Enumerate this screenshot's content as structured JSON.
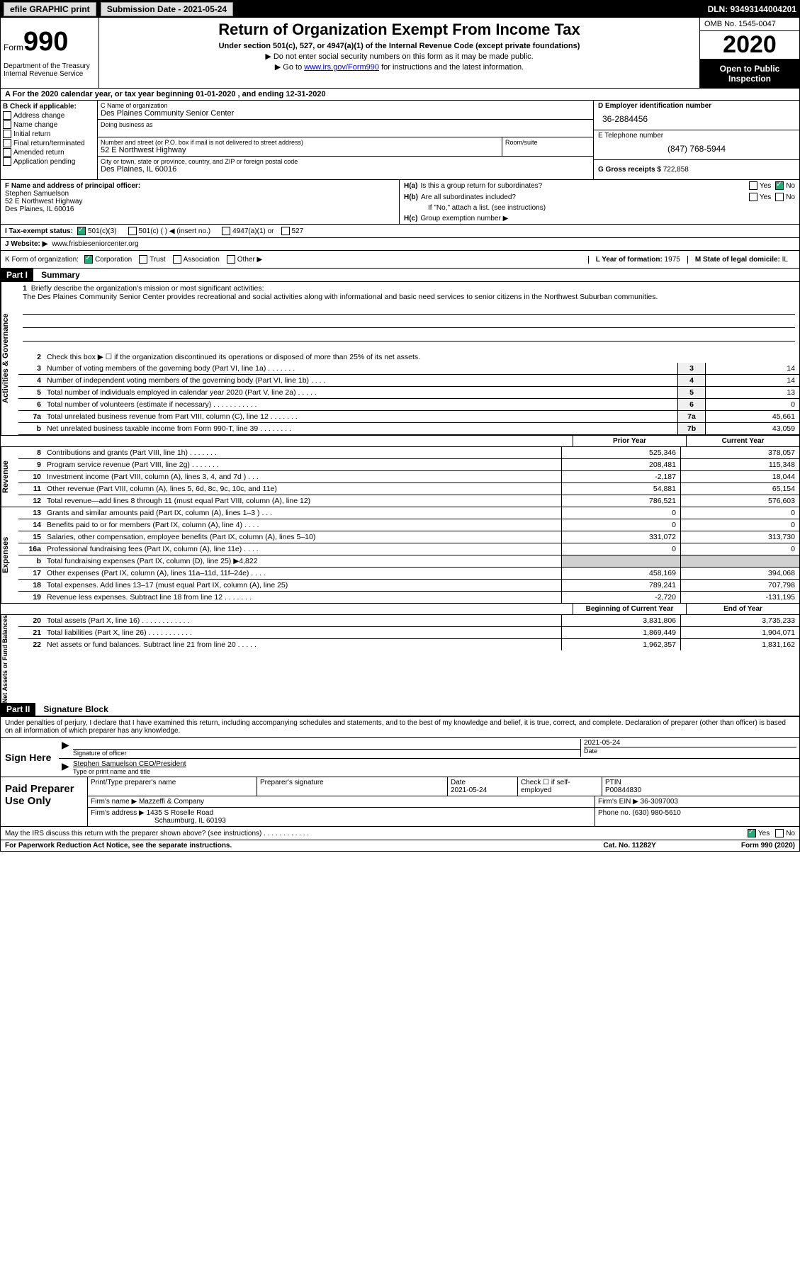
{
  "topbar": {
    "efile": "efile GRAPHIC print",
    "submission": "Submission Date - 2021-05-24",
    "dln": "DLN: 93493144004201"
  },
  "header": {
    "form_prefix": "Form",
    "form_no": "990",
    "dept": "Department of the Treasury\nInternal Revenue Service",
    "title": "Return of Organization Exempt From Income Tax",
    "sub": "Under section 501(c), 527, or 4947(a)(1) of the Internal Revenue Code (except private foundations)",
    "note1": "▶ Do not enter social security numbers on this form as it may be made public.",
    "note2_pre": "▶ Go to ",
    "note2_link": "www.irs.gov/Form990",
    "note2_post": " for instructions and the latest information.",
    "omb": "OMB No. 1545-0047",
    "year": "2020",
    "inspect": "Open to Public Inspection"
  },
  "line_a": "A For the 2020 calendar year, or tax year beginning 01-01-2020   , and ending 12-31-2020",
  "col_b": {
    "hdr": "B Check if applicable:",
    "items": [
      "Address change",
      "Name change",
      "Initial return",
      "Final return/terminated",
      "Amended return",
      "Application pending"
    ]
  },
  "col_c": {
    "name_lbl": "C Name of organization",
    "name": "Des Plaines Community Senior Center",
    "dba_lbl": "Doing business as",
    "dba": "",
    "addr_lbl": "Number and street (or P.O. box if mail is not delivered to street address)",
    "addr": "52 E Northwest Highway",
    "suite_lbl": "Room/suite",
    "city_lbl": "City or town, state or province, country, and ZIP or foreign postal code",
    "city": "Des Plaines, IL  60016"
  },
  "col_d": {
    "ein_lbl": "D Employer identification number",
    "ein": "36-2884456",
    "tel_lbl": "E Telephone number",
    "tel": "(847) 768-5944",
    "gross_lbl": "G Gross receipts $",
    "gross": "722,858"
  },
  "col_f": {
    "lbl": "F  Name and address of principal officer:",
    "name": "Stephen Samuelson",
    "addr1": "52 E Northwest Highway",
    "addr2": "Des Plaines, IL  60016"
  },
  "col_h": {
    "a_lbl": "H(a)",
    "a_txt": "Is this a group return for subordinates?",
    "b_lbl": "H(b)",
    "b_txt": "Are all subordinates included?",
    "b_note": "If \"No,\" attach a list. (see instructions)",
    "c_lbl": "H(c)",
    "c_txt": "Group exemption number ▶",
    "yes": "Yes",
    "no": "No"
  },
  "row_i": {
    "lbl": "I   Tax-exempt status:",
    "opts": [
      "501(c)(3)",
      "501(c) (   ) ◀ (insert no.)",
      "4947(a)(1) or",
      "527"
    ]
  },
  "row_j": {
    "lbl": "J   Website: ▶",
    "val": "www.frisbieseniorcenter.org"
  },
  "row_k": {
    "lbl": "K Form of organization:",
    "opts": [
      "Corporation",
      "Trust",
      "Association",
      "Other ▶"
    ],
    "l_lbl": "L Year of formation:",
    "l_val": "1975",
    "m_lbl": "M State of legal domicile:",
    "m_val": "IL"
  },
  "part1": {
    "hdr": "Part I",
    "title": "Summary",
    "line1_lbl": "1",
    "line1_txt": "Briefly describe the organization's mission or most significant activities:",
    "mission": "The Des Plaines Community Senior Center provides recreational and social activities along with informational and basic need services to senior citizens in the Northwest Suburban communities.",
    "line2_lbl": "2",
    "line2_txt": "Check this box ▶ ☐  if the organization discontinued its operations or disposed of more than 25% of its net assets.",
    "gov_label": "Activities & Governance",
    "rev_label": "Revenue",
    "exp_label": "Expenses",
    "net_label": "Net Assets or Fund Balances",
    "rows_gov": [
      {
        "n": "3",
        "t": "Number of voting members of the governing body (Part VI, line 1a)  .    .    .    .    .    .    .",
        "b": "3",
        "v": "14"
      },
      {
        "n": "4",
        "t": "Number of independent voting members of the governing body (Part VI, line 1b)  .    .    .    .",
        "b": "4",
        "v": "14"
      },
      {
        "n": "5",
        "t": "Total number of individuals employed in calendar year 2020 (Part V, line 2a)  .    .    .    .    .",
        "b": "5",
        "v": "13"
      },
      {
        "n": "6",
        "t": "Total number of volunteers (estimate if necessary)    .    .    .    .    .    .    .    .    .    .    .",
        "b": "6",
        "v": "0"
      },
      {
        "n": "7a",
        "t": "Total unrelated business revenue from Part VIII, column (C), line 12   .    .    .    .    .    .    .",
        "b": "7a",
        "v": "45,661"
      },
      {
        "n": " b",
        "t": "Net unrelated business taxable income from Form 990-T, line 39  .    .    .    .    .    .    .    .",
        "b": "7b",
        "v": "43,059"
      }
    ],
    "prior_hdr": "Prior Year",
    "curr_hdr": "Current Year",
    "rows_rev": [
      {
        "n": "8",
        "t": "Contributions and grants (Part VIII, line 1h)  .    .    .    .    .    .    .",
        "p": "525,346",
        "c": "378,057"
      },
      {
        "n": "9",
        "t": "Program service revenue (Part VIII, line 2g)   .    .    .    .    .    .    .",
        "p": "208,481",
        "c": "115,348"
      },
      {
        "n": "10",
        "t": "Investment income (Part VIII, column (A), lines 3, 4, and 7d )  .    .    .",
        "p": "-2,187",
        "c": "18,044"
      },
      {
        "n": "11",
        "t": "Other revenue (Part VIII, column (A), lines 5, 6d, 8c, 9c, 10c, and 11e)",
        "p": "54,881",
        "c": "65,154"
      },
      {
        "n": "12",
        "t": "Total revenue—add lines 8 through 11 (must equal Part VIII, column (A), line 12)",
        "p": "786,521",
        "c": "576,603"
      }
    ],
    "rows_exp": [
      {
        "n": "13",
        "t": "Grants and similar amounts paid (Part IX, column (A), lines 1–3 )  .    .    .",
        "p": "0",
        "c": "0"
      },
      {
        "n": "14",
        "t": "Benefits paid to or for members (Part IX, column (A), line 4)  .    .    .    .",
        "p": "0",
        "c": "0"
      },
      {
        "n": "15",
        "t": "Salaries, other compensation, employee benefits (Part IX, column (A), lines 5–10)",
        "p": "331,072",
        "c": "313,730"
      },
      {
        "n": "16a",
        "t": "Professional fundraising fees (Part IX, column (A), line 11e)  .    .    .    .",
        "p": "0",
        "c": "0"
      },
      {
        "n": "b",
        "t": "Total fundraising expenses (Part IX, column (D), line 25) ▶4,822",
        "p": "",
        "c": "",
        "shade": true
      },
      {
        "n": "17",
        "t": "Other expenses (Part IX, column (A), lines 11a–11d, 11f–24e)  .    .    .    .",
        "p": "458,169",
        "c": "394,068"
      },
      {
        "n": "18",
        "t": "Total expenses. Add lines 13–17 (must equal Part IX, column (A), line 25)",
        "p": "789,241",
        "c": "707,798"
      },
      {
        "n": "19",
        "t": "Revenue less expenses. Subtract line 18 from line 12 .    .    .    .    .    .    .",
        "p": "-2,720",
        "c": "-131,195"
      }
    ],
    "begin_hdr": "Beginning of Current Year",
    "end_hdr": "End of Year",
    "rows_net": [
      {
        "n": "20",
        "t": "Total assets (Part X, line 16)  .    .    .    .    .    .    .    .    .    .    .    .",
        "p": "3,831,806",
        "c": "3,735,233"
      },
      {
        "n": "21",
        "t": "Total liabilities (Part X, line 26)  .    .    .    .    .    .    .    .    .    .    .",
        "p": "1,869,449",
        "c": "1,904,071"
      },
      {
        "n": "22",
        "t": "Net assets or fund balances. Subtract line 21 from line 20  .    .    .    .    .",
        "p": "1,962,357",
        "c": "1,831,162"
      }
    ]
  },
  "part2": {
    "hdr": "Part II",
    "title": "Signature Block",
    "penalty": "Under penalties of perjury, I declare that I have examined this return, including accompanying schedules and statements, and to the best of my knowledge and belief, it is true, correct, and complete. Declaration of preparer (other than officer) is based on all information of which preparer has any knowledge.",
    "sign_here": "Sign Here",
    "sig_off": "Signature of officer",
    "sig_date": "2021-05-24",
    "sig_date_lbl": "Date",
    "sig_name": "Stephen Samuelson CEO/President",
    "sig_type_lbl": "Type or print name and title",
    "paid_lbl": "Paid Preparer Use Only",
    "prep_name_lbl": "Print/Type preparer's name",
    "prep_sig_lbl": "Preparer's signature",
    "prep_date_lbl": "Date",
    "prep_date": "2021-05-24",
    "prep_check_lbl": "Check ☐ if self-employed",
    "ptin_lbl": "PTIN",
    "ptin": "P00844830",
    "firm_name_lbl": "Firm's name    ▶",
    "firm_name": "Mazzeffi & Company",
    "firm_ein_lbl": "Firm's EIN ▶",
    "firm_ein": "36-3097003",
    "firm_addr_lbl": "Firm's address ▶",
    "firm_addr1": "1435 S Roselle Road",
    "firm_addr2": "Schaumburg, IL  60193",
    "phone_lbl": "Phone no.",
    "phone": "(630) 980-5610",
    "discuss": "May the IRS discuss this return with the preparer shown above? (see instructions)  .    .    .    .    .    .    .    .    .    .    .    ."
  },
  "footer": {
    "left": "For Paperwork Reduction Act Notice, see the separate instructions.",
    "mid": "Cat. No. 11282Y",
    "right": "Form 990 (2020)"
  }
}
